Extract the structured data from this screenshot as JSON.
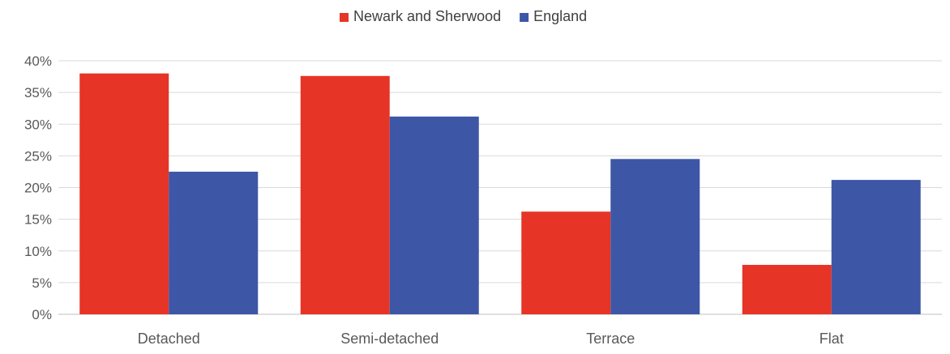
{
  "chart_data": {
    "type": "bar",
    "title": "",
    "xlabel": "",
    "ylabel": "",
    "categories": [
      "Detached",
      "Semi-detached",
      "Terrace",
      "Flat"
    ],
    "series": [
      {
        "name": "Newark and Sherwood",
        "color": "#e63426",
        "values": [
          38.0,
          37.6,
          16.2,
          7.8
        ]
      },
      {
        "name": "England",
        "color": "#3d57a6",
        "values": [
          22.5,
          31.2,
          24.5,
          21.2
        ]
      }
    ],
    "ylim": [
      0,
      40
    ],
    "yticks": [
      "0%",
      "5%",
      "10%",
      "15%",
      "20%",
      "25%",
      "30%",
      "35%",
      "40%"
    ],
    "grid": true,
    "legend": "top-center"
  }
}
